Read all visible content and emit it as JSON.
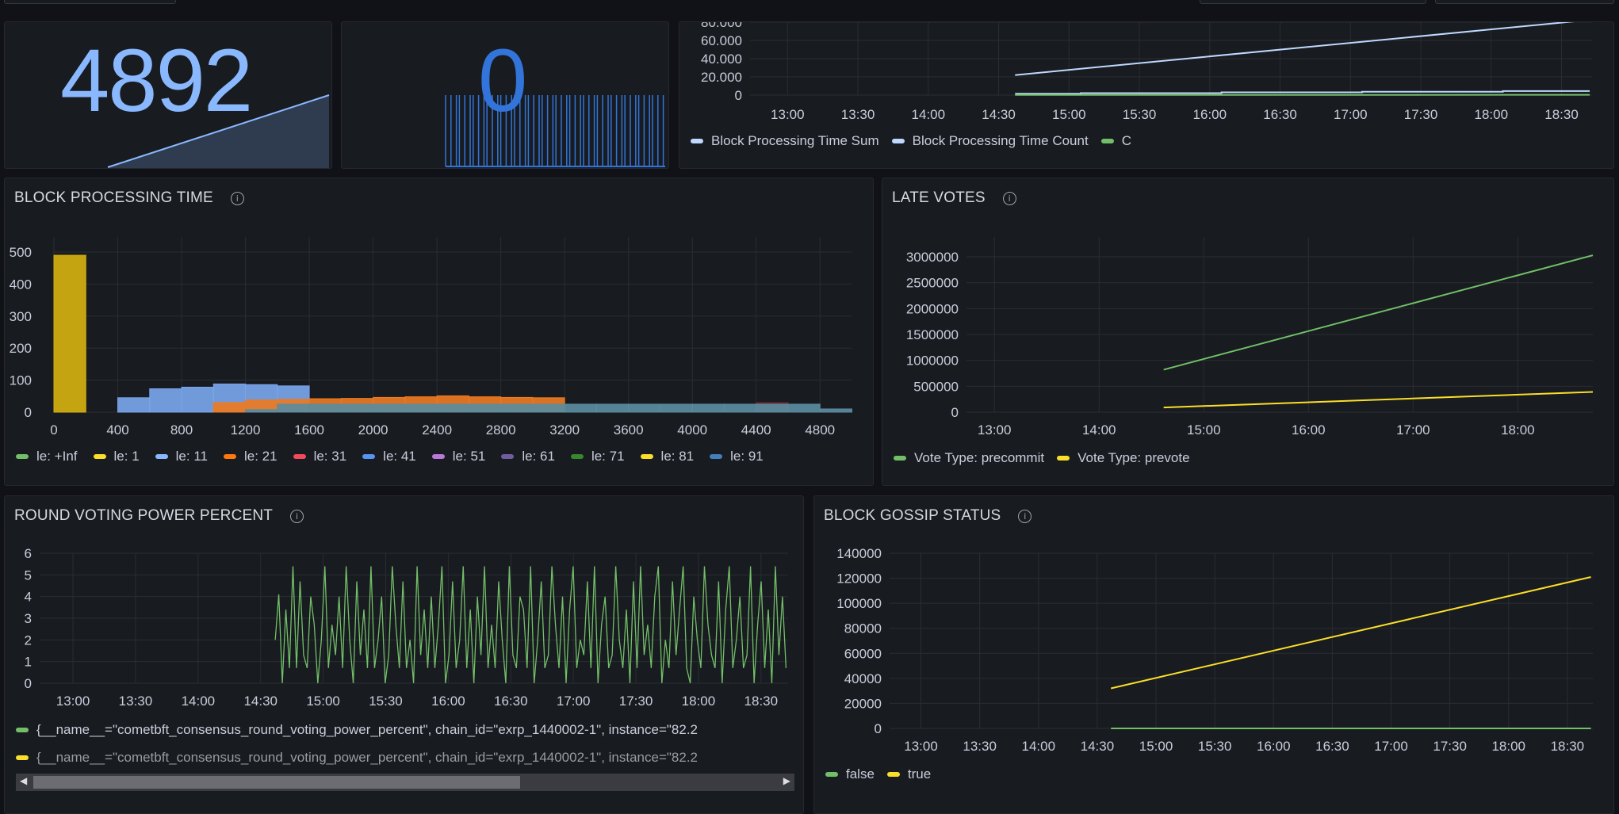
{
  "stat_blocks": {
    "value": "4892",
    "color": "#8ab8ff"
  },
  "stat_zero": {
    "value": "0",
    "color": "#3274d9"
  },
  "block_time_summary": {
    "y_ticks": [
      {
        "label": "0",
        "value": 0
      },
      {
        "label": "20.000",
        "value": 20000
      },
      {
        "label": "40.000",
        "value": 40000
      },
      {
        "label": "60.000",
        "value": 60000
      },
      {
        "label": "80.000",
        "value": 80000
      }
    ],
    "x_ticks": [
      "13:00",
      "13:30",
      "14:00",
      "14:30",
      "15:00",
      "15:30",
      "16:00",
      "16:30",
      "17:00",
      "17:30",
      "18:00",
      "18:30"
    ],
    "y_range": [
      0,
      80000
    ],
    "series": [
      {
        "name": "Block Processing Time Sum",
        "color": "#c0d8ff",
        "points": [
          [
            "14:37",
            22000
          ],
          [
            "18:36",
            81000
          ]
        ]
      },
      {
        "name": "Block Processing Time Count",
        "color": "#c0d8ff",
        "points": [
          [
            "14:37",
            1500
          ],
          [
            "15:05",
            1500
          ],
          [
            "15:05",
            2200
          ],
          [
            "16:05",
            2200
          ],
          [
            "16:05",
            3000
          ],
          [
            "17:05",
            3000
          ],
          [
            "17:05",
            3700
          ],
          [
            "18:05",
            3700
          ],
          [
            "18:05",
            4500
          ],
          [
            "18:42",
            4500
          ]
        ]
      },
      {
        "name": "C",
        "color": "#73bf69",
        "points": [
          [
            "14:37",
            200
          ],
          [
            "18:42",
            300
          ]
        ]
      }
    ]
  },
  "block_processing_time": {
    "title": "BLOCK PROCESSING TIME",
    "info_icon": "i",
    "y_ticks": [
      {
        "label": "0",
        "value": 0
      },
      {
        "label": "100",
        "value": 100
      },
      {
        "label": "200",
        "value": 200
      },
      {
        "label": "300",
        "value": 300
      },
      {
        "label": "400",
        "value": 400
      },
      {
        "label": "500",
        "value": 500
      }
    ],
    "x_ticks": [
      {
        "label": "0",
        "value": 0
      },
      {
        "label": "400",
        "value": 400
      },
      {
        "label": "800",
        "value": 800
      },
      {
        "label": "1200",
        "value": 1200
      },
      {
        "label": "1600",
        "value": 1600
      },
      {
        "label": "2000",
        "value": 2000
      },
      {
        "label": "2400",
        "value": 2400
      },
      {
        "label": "2800",
        "value": 2800
      },
      {
        "label": "3200",
        "value": 3200
      },
      {
        "label": "3600",
        "value": 3600
      },
      {
        "label": "4000",
        "value": 4000
      },
      {
        "label": "4400",
        "value": 4400
      },
      {
        "label": "4800",
        "value": 4800
      }
    ],
    "legend": [
      {
        "label": "le: +Inf",
        "color": "#73bf69"
      },
      {
        "label": "le: 1",
        "color": "#fade2a"
      },
      {
        "label": "le: 11",
        "color": "#8ab8ff"
      },
      {
        "label": "le: 21",
        "color": "#ff780a"
      },
      {
        "label": "le: 31",
        "color": "#f2495c"
      },
      {
        "label": "le: 41",
        "color": "#5794f2"
      },
      {
        "label": "le: 51",
        "color": "#b877d9"
      },
      {
        "label": "le: 61",
        "color": "#705da0"
      },
      {
        "label": "le: 71",
        "color": "#37872d"
      },
      {
        "label": "le: 81",
        "color": "#fade2a"
      },
      {
        "label": "le: 91",
        "color": "#447ebc"
      }
    ],
    "bars": [
      {
        "series": "le: 1",
        "color": "#d4b00f",
        "bins": [
          [
            0,
            200,
            490
          ]
        ]
      },
      {
        "series": "le: 11",
        "color": "#7aa5ea",
        "bins": [
          [
            400,
            600,
            45
          ],
          [
            600,
            800,
            73
          ],
          [
            800,
            1000,
            78
          ],
          [
            1000,
            1200,
            88
          ],
          [
            1200,
            1400,
            86
          ],
          [
            1400,
            1600,
            82
          ]
        ]
      },
      {
        "series": "le: 21",
        "color": "#ec7a22",
        "bins": [
          [
            1000,
            1200,
            30
          ],
          [
            1200,
            1400,
            38
          ],
          [
            1400,
            1600,
            40
          ],
          [
            1600,
            1800,
            42
          ],
          [
            1800,
            2000,
            43
          ],
          [
            2000,
            2200,
            46
          ],
          [
            2200,
            2400,
            48
          ],
          [
            2400,
            2600,
            51
          ],
          [
            2600,
            2800,
            48
          ],
          [
            2800,
            3000,
            46
          ],
          [
            3000,
            3200,
            45
          ]
        ]
      },
      {
        "series": "le: 31",
        "color": "#6a2a35",
        "bins": [
          [
            4400,
            4600,
            30
          ]
        ]
      },
      {
        "series": "le: 91",
        "color": "#5b8c9f",
        "bins": [
          [
            1200,
            1400,
            8
          ],
          [
            1400,
            1600,
            25
          ],
          [
            1600,
            1800,
            25
          ],
          [
            1800,
            2000,
            25
          ],
          [
            2000,
            2200,
            25
          ],
          [
            2200,
            2400,
            25
          ],
          [
            2400,
            2600,
            25
          ],
          [
            2600,
            2800,
            25
          ],
          [
            2800,
            3000,
            25
          ],
          [
            3000,
            3200,
            25
          ],
          [
            3200,
            3400,
            25
          ],
          [
            3400,
            3600,
            25
          ],
          [
            3600,
            3800,
            25
          ],
          [
            3800,
            4000,
            25
          ],
          [
            4000,
            4200,
            25
          ],
          [
            4200,
            4400,
            25
          ],
          [
            4400,
            4600,
            25
          ],
          [
            4600,
            4800,
            25
          ],
          [
            4800,
            5000,
            10
          ]
        ]
      }
    ]
  },
  "late_votes": {
    "title": "LATE VOTES",
    "info_icon": "i",
    "y_ticks": [
      {
        "label": "0",
        "value": 0
      },
      {
        "label": "500000",
        "value": 500000
      },
      {
        "label": "1000000",
        "value": 1000000
      },
      {
        "label": "1500000",
        "value": 1500000
      },
      {
        "label": "2000000",
        "value": 2000000
      },
      {
        "label": "2500000",
        "value": 2500000
      },
      {
        "label": "3000000",
        "value": 3000000
      }
    ],
    "x_ticks": [
      "13:00",
      "14:00",
      "15:00",
      "16:00",
      "17:00",
      "18:00"
    ],
    "series": [
      {
        "name": "Vote Type: precommit",
        "color": "#73bf69",
        "points": [
          [
            "14:37",
            820000
          ],
          [
            "18:43",
            3030000
          ]
        ]
      },
      {
        "name": "Vote Type: prevote",
        "color": "#fade2a",
        "points": [
          [
            "14:37",
            90000
          ],
          [
            "18:43",
            390000
          ]
        ]
      }
    ]
  },
  "round_voting_power": {
    "title": "ROUND VOTING POWER PERCENT",
    "info_icon": "i",
    "y_ticks": [
      {
        "label": "0",
        "value": 0
      },
      {
        "label": "1",
        "value": 1
      },
      {
        "label": "2",
        "value": 2
      },
      {
        "label": "3",
        "value": 3
      },
      {
        "label": "4",
        "value": 4
      },
      {
        "label": "5",
        "value": 5
      },
      {
        "label": "6",
        "value": 6
      }
    ],
    "x_ticks": [
      "13:00",
      "13:30",
      "14:00",
      "14:30",
      "15:00",
      "15:30",
      "16:00",
      "16:30",
      "17:00",
      "17:30",
      "18:00",
      "18:30"
    ],
    "series_start": "14:37",
    "series_end": "18:42",
    "values": [
      2,
      4.1,
      0,
      3.4,
      0.7,
      5.4,
      0.7,
      4.7,
      1.3,
      0.7,
      4,
      2.7,
      0,
      2,
      5.4,
      0.7,
      2.7,
      1.3,
      4,
      0.7,
      5.4,
      2,
      0,
      4.7,
      1.3,
      3.4,
      0.7,
      5.4,
      0.7,
      2,
      4,
      0,
      1.3,
      5.4,
      2.7,
      0.7,
      4.7,
      0.7,
      2,
      0,
      5.4,
      1.3,
      3.4,
      0.7,
      4,
      0.7,
      2.7,
      5.4,
      0,
      1.3,
      4.7,
      0.7,
      2,
      5.4,
      0.7,
      3.4,
      0,
      4,
      1.3,
      5.4,
      0.7,
      2.7,
      0.7,
      4.7,
      2,
      0,
      5.4,
      1.3,
      0.7,
      4,
      3.4,
      0.7,
      5.4,
      0,
      2,
      4.7,
      0.7,
      1.3,
      5.4,
      2.7,
      0.7,
      4,
      0,
      3.4,
      5.4,
      0.7,
      2,
      1.3,
      4.7,
      0.7,
      5.4,
      0,
      2.7,
      4,
      0.7,
      1.3,
      5.4,
      2,
      0.7,
      3.4,
      0,
      4.7,
      0.7,
      5.4,
      1.3,
      2.7,
      0.7,
      4,
      5.4,
      0,
      2,
      0.7,
      4.7,
      1.3,
      3.4,
      5.4,
      0.7,
      0,
      4,
      2,
      0.7,
      5.4,
      2.7,
      1.3,
      0.7,
      4.7,
      0,
      3.4,
      5.4,
      0.7,
      2,
      4,
      0.7,
      1.3,
      5.4,
      0,
      2.7,
      4.7,
      0.7,
      3.4,
      0,
      5.4,
      1.3,
      4,
      0.7
    ],
    "color": "#73bf69",
    "legend": [
      {
        "label": "{__name__=\"cometbft_consensus_round_voting_power_percent\", chain_id=\"exrp_1440002-1\", instance=\"82.2",
        "color": "#73bf69"
      },
      {
        "label": "{__name__=\"cometbft_consensus_round_voting_power_percent\", chain_id=\"exrp_1440002-1\", instance=\"82.2",
        "color": "#fade2a"
      }
    ]
  },
  "block_gossip_status": {
    "title": "BLOCK GOSSIP STATUS",
    "info_icon": "i",
    "y_ticks": [
      {
        "label": "0",
        "value": 0
      },
      {
        "label": "20000",
        "value": 20000
      },
      {
        "label": "40000",
        "value": 40000
      },
      {
        "label": "60000",
        "value": 60000
      },
      {
        "label": "80000",
        "value": 80000
      },
      {
        "label": "100000",
        "value": 100000
      },
      {
        "label": "120000",
        "value": 120000
      },
      {
        "label": "140000",
        "value": 140000
      }
    ],
    "x_ticks": [
      "13:00",
      "13:30",
      "14:00",
      "14:30",
      "15:00",
      "15:30",
      "16:00",
      "16:30",
      "17:00",
      "17:30",
      "18:00",
      "18:30"
    ],
    "series": [
      {
        "name": "false",
        "color": "#73bf69",
        "points": [
          [
            "14:37",
            0
          ],
          [
            "18:42",
            0
          ]
        ]
      },
      {
        "name": "true",
        "color": "#fade2a",
        "points": [
          [
            "14:37",
            32000
          ],
          [
            "18:42",
            121000
          ]
        ]
      }
    ]
  }
}
